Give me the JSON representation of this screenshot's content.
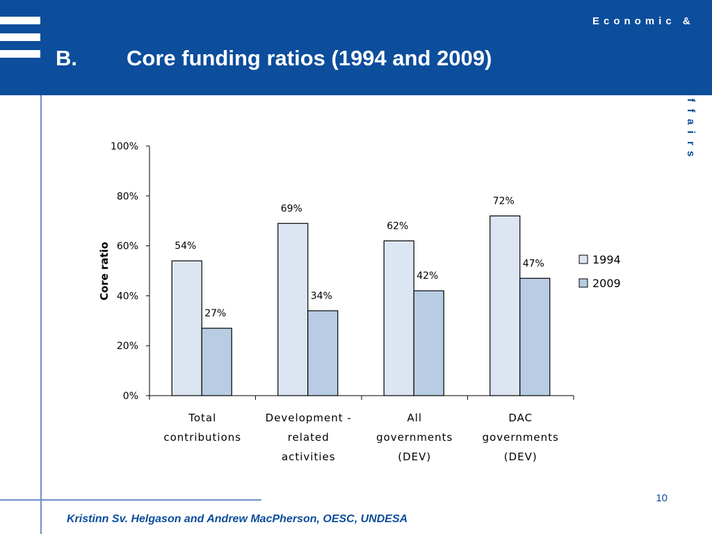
{
  "header": {
    "letter": "B.",
    "title": "Core funding ratios (1994 and 2009)",
    "org_line_1": "Economic  &",
    "org_vertical": "Social Affairs"
  },
  "footer": {
    "author": "Kristinn Sv. Helgason and Andrew MacPherson, OESC, UNDESA",
    "page_number": "10"
  },
  "colors": {
    "header_bg": "#0c4d9c",
    "series_1994": "#dce6f2",
    "series_2009": "#b8cce4",
    "bar_stroke": "#000000"
  },
  "chart_data": {
    "type": "bar",
    "ylabel": "Core ratio",
    "xlabel": "",
    "ylim": [
      0,
      100
    ],
    "yticks": [
      "0%",
      "20%",
      "40%",
      "60%",
      "80%",
      "100%"
    ],
    "ytick_values": [
      0,
      20,
      40,
      60,
      80,
      100
    ],
    "categories": [
      [
        "Total",
        "contributions"
      ],
      [
        "Development -",
        "related",
        "activities"
      ],
      [
        "All",
        "governments",
        "(DEV)"
      ],
      [
        "DAC",
        "governments",
        "(DEV)"
      ]
    ],
    "series": [
      {
        "name": "1994",
        "values": [
          54,
          69,
          62,
          72
        ],
        "labels": [
          "54%",
          "69%",
          "62%",
          "72%"
        ]
      },
      {
        "name": "2009",
        "values": [
          27,
          34,
          42,
          47
        ],
        "labels": [
          "27%",
          "34%",
          "42%",
          "47%"
        ]
      }
    ],
    "legend_position": "right",
    "grid": false
  }
}
